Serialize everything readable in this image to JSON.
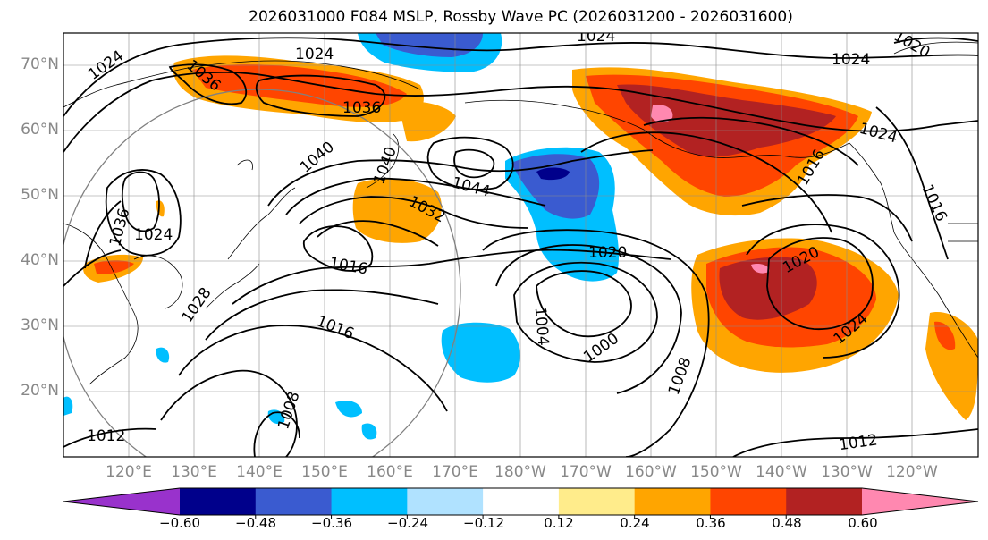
{
  "title": "2026031000 F084 MSLP, Rossby Wave PC (2026031200 - 2026031600)",
  "lat_labels": [
    "70°N",
    "60°N",
    "50°N",
    "40°N",
    "30°N",
    "20°N"
  ],
  "lon_labels": [
    "120°E",
    "130°E",
    "140°E",
    "150°E",
    "160°E",
    "170°E",
    "180°W",
    "170°W",
    "160°W",
    "150°W",
    "140°W",
    "130°W",
    "120°W"
  ],
  "colorbar": {
    "ticks": [
      "−0.60",
      "−0.48",
      "−0.36",
      "−0.24",
      "−0.12",
      "0.12",
      "0.24",
      "0.36",
      "0.48",
      "0.60"
    ],
    "colors": [
      "#9932cc",
      "#00008b",
      "#3a5bd0",
      "#00bfff",
      "#b0e2ff",
      "#ffffff",
      "#ffec8b",
      "#ffa500",
      "#ff4500",
      "#b22222",
      "#ff88b0"
    ]
  },
  "contour_labels": [
    {
      "text": "1024",
      "id": "a"
    },
    {
      "text": "1024",
      "id": "b"
    },
    {
      "text": "1024",
      "id": "c"
    },
    {
      "text": "1020",
      "id": "d"
    },
    {
      "text": "1024",
      "id": "e"
    },
    {
      "text": "1036",
      "id": "f"
    },
    {
      "text": "1036",
      "id": "g"
    },
    {
      "text": "1040",
      "id": "h"
    },
    {
      "text": "1040",
      "id": "i"
    },
    {
      "text": "1044",
      "id": "j"
    },
    {
      "text": "1032",
      "id": "k"
    },
    {
      "text": "1036",
      "id": "l"
    },
    {
      "text": "1024",
      "id": "m"
    },
    {
      "text": "1016",
      "id": "n"
    },
    {
      "text": "1028",
      "id": "o"
    },
    {
      "text": "1016",
      "id": "p"
    },
    {
      "text": "1020",
      "id": "q"
    },
    {
      "text": "1004",
      "id": "r"
    },
    {
      "text": "1000",
      "id": "s"
    },
    {
      "text": "1008",
      "id": "t"
    },
    {
      "text": "1008",
      "id": "u"
    },
    {
      "text": "1012",
      "id": "v"
    },
    {
      "text": "1012",
      "id": "w"
    },
    {
      "text": "1020",
      "id": "x"
    },
    {
      "text": "1024",
      "id": "y"
    },
    {
      "text": "1024",
      "id": "z"
    },
    {
      "text": "1016",
      "id": "aa"
    },
    {
      "text": "1016",
      "id": "ab"
    }
  ]
}
